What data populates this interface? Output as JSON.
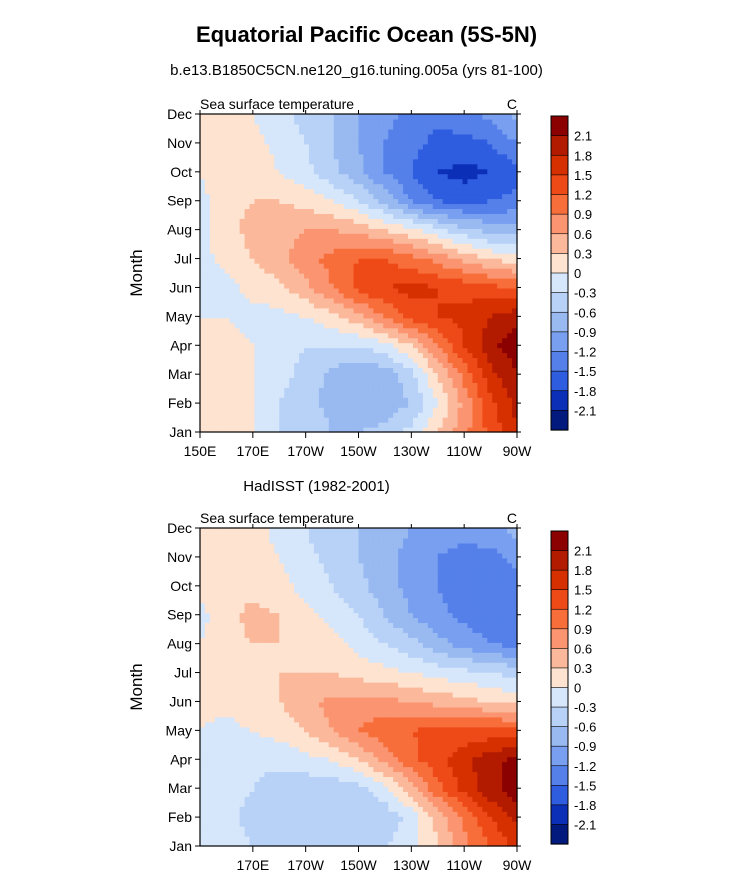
{
  "figure": {
    "title": "Equatorial Pacific Ocean (5S-5N)",
    "units": "C"
  },
  "colorbar": {
    "levels": [
      "2.1",
      "1.8",
      "1.5",
      "1.2",
      "0.9",
      "0.6",
      "0.3",
      "0",
      "-0.3",
      "-0.6",
      "-0.9",
      "-1.2",
      "-1.5",
      "-1.8",
      "-2.1"
    ],
    "colors": [
      "#8b0000",
      "#b31b00",
      "#d63000",
      "#ee4a18",
      "#f86e3a",
      "#fb9470",
      "#fbb89a",
      "#fde3d0",
      "#d6e6fb",
      "#b8d2f7",
      "#99b9f1",
      "#789ff0",
      "#5580ea",
      "#2f5de0",
      "#0c2fb8",
      "#021a7e"
    ]
  },
  "panels": [
    {
      "subtitle": "b.e13.B1850C5CN.ne120_g16.tuning.005a (yrs 81-100)",
      "left_label": "Sea surface temperature",
      "right_label": "C",
      "ylabel": "Month",
      "y_ticks": [
        "Jan",
        "Feb",
        "Mar",
        "Apr",
        "May",
        "Jun",
        "Jul",
        "Aug",
        "Sep",
        "Oct",
        "Nov",
        "Dec"
      ],
      "x_ticks": [
        "150E",
        "170E",
        "170W",
        "150W",
        "130W",
        "110W",
        "90W"
      ],
      "chart_data": {
        "type": "heatmap",
        "title": "b.e13.B1850C5CN.ne120_g16.tuning.005a (yrs 81-100)",
        "xlabel": "",
        "ylabel": "Month",
        "x": [
          150,
          160,
          170,
          180,
          190,
          200,
          210,
          220,
          230,
          240,
          250,
          260,
          270
        ],
        "y": [
          "Jan",
          "Feb",
          "Mar",
          "Apr",
          "May",
          "Jun",
          "Jul",
          "Aug",
          "Sep",
          "Oct",
          "Nov",
          "Dec"
        ],
        "x_range_deg": [
          150,
          270
        ],
        "values": [
          [
            0.2,
            0.1,
            0.0,
            -0.3,
            -0.4,
            -0.6,
            -0.6,
            -0.5,
            -0.2,
            0.3,
            0.8,
            1.3,
            1.8
          ],
          [
            0.2,
            0.1,
            0.0,
            -0.3,
            -0.5,
            -0.7,
            -0.8,
            -0.8,
            -0.6,
            0.0,
            0.7,
            1.4,
            1.9
          ],
          [
            0.2,
            0.1,
            0.0,
            -0.2,
            -0.4,
            -0.7,
            -0.9,
            -0.8,
            -0.4,
            0.3,
            1.0,
            1.7,
            2.1
          ],
          [
            0.1,
            0.1,
            0.0,
            -0.2,
            -0.3,
            -0.3,
            -0.3,
            -0.1,
            0.3,
            0.9,
            1.5,
            2.0,
            2.3
          ],
          [
            0.0,
            0.0,
            -0.1,
            -0.1,
            0.0,
            0.2,
            0.5,
            0.9,
            1.3,
            1.5,
            1.6,
            1.8,
            2.0
          ],
          [
            -0.1,
            -0.1,
            0.1,
            0.2,
            0.5,
            0.9,
            1.3,
            1.5,
            1.6,
            1.5,
            1.4,
            1.3,
            1.2
          ],
          [
            -0.1,
            0.1,
            0.3,
            0.5,
            0.8,
            1.0,
            1.2,
            1.2,
            1.0,
            0.8,
            0.5,
            0.3,
            0.1
          ],
          [
            -0.1,
            0.2,
            0.4,
            0.5,
            0.6,
            0.6,
            0.5,
            0.3,
            0.1,
            -0.2,
            -0.5,
            -0.7,
            -0.8
          ],
          [
            -0.1,
            0.2,
            0.3,
            0.3,
            0.2,
            0.0,
            -0.3,
            -0.7,
            -1.2,
            -1.5,
            -1.6,
            -1.5,
            -1.4
          ],
          [
            0.0,
            0.2,
            0.2,
            0.0,
            -0.2,
            -0.5,
            -0.8,
            -1.2,
            -1.5,
            -1.8,
            -1.9,
            -1.8,
            -1.6
          ],
          [
            0.0,
            0.2,
            0.1,
            -0.1,
            -0.3,
            -0.6,
            -0.9,
            -1.2,
            -1.4,
            -1.6,
            -1.6,
            -1.5,
            -1.2
          ],
          [
            0.0,
            0.2,
            0.0,
            -0.2,
            -0.4,
            -0.6,
            -0.9,
            -1.1,
            -1.3,
            -1.4,
            -1.3,
            -1.1,
            -0.8
          ]
        ]
      }
    },
    {
      "subtitle": "HadISST (1982-2001)",
      "left_label": "Sea surface temperature",
      "right_label": "C",
      "ylabel": "Month",
      "y_ticks": [
        "Jan",
        "Feb",
        "Mar",
        "Apr",
        "May",
        "Jun",
        "Jul",
        "Aug",
        "Sep",
        "Oct",
        "Nov",
        "Dec"
      ],
      "x_ticks": [
        "170E",
        "170W",
        "150W",
        "130W",
        "110W",
        "90W"
      ],
      "chart_data": {
        "type": "heatmap",
        "title": "HadISST (1982-2001)",
        "xlabel": "",
        "ylabel": "Month",
        "x": [
          150,
          160,
          170,
          180,
          190,
          200,
          210,
          220,
          230,
          240,
          250,
          260,
          270
        ],
        "y": [
          "Jan",
          "Feb",
          "Mar",
          "Apr",
          "May",
          "Jun",
          "Jul",
          "Aug",
          "Sep",
          "Oct",
          "Nov",
          "Dec"
        ],
        "x_range_deg": [
          150,
          270
        ],
        "values": [
          [
            0.0,
            -0.2,
            -0.3,
            -0.4,
            -0.4,
            -0.5,
            -0.5,
            -0.3,
            -0.1,
            0.3,
            0.8,
            1.2,
            1.6
          ],
          [
            -0.1,
            -0.2,
            -0.4,
            -0.5,
            -0.6,
            -0.6,
            -0.6,
            -0.5,
            -0.2,
            0.4,
            1.0,
            1.5,
            1.9
          ],
          [
            -0.1,
            -0.2,
            -0.3,
            -0.5,
            -0.5,
            -0.5,
            -0.4,
            -0.1,
            0.5,
            1.1,
            1.6,
            2.0,
            2.3
          ],
          [
            -0.2,
            -0.2,
            -0.2,
            -0.2,
            -0.1,
            0.0,
            0.3,
            0.7,
            1.1,
            1.4,
            1.7,
            2.0,
            2.2
          ],
          [
            0.0,
            -0.1,
            0.0,
            0.1,
            0.3,
            0.6,
            0.9,
            1.1,
            1.2,
            1.3,
            1.3,
            1.3,
            1.3
          ],
          [
            0.1,
            0.1,
            0.2,
            0.3,
            0.5,
            0.7,
            0.7,
            0.7,
            0.6,
            0.5,
            0.4,
            0.3,
            0.2
          ],
          [
            0.1,
            0.2,
            0.2,
            0.3,
            0.3,
            0.3,
            0.2,
            0.1,
            0.0,
            -0.1,
            -0.2,
            -0.3,
            -0.4
          ],
          [
            0.0,
            0.2,
            0.3,
            0.3,
            0.2,
            0.1,
            -0.1,
            -0.3,
            -0.5,
            -0.8,
            -1.0,
            -1.2,
            -1.3
          ],
          [
            -0.1,
            0.2,
            0.4,
            0.3,
            0.1,
            -0.1,
            -0.3,
            -0.6,
            -0.9,
            -1.1,
            -1.3,
            -1.4,
            -1.4
          ],
          [
            0.1,
            0.2,
            0.2,
            0.1,
            -0.1,
            -0.3,
            -0.5,
            -0.8,
            -1.0,
            -1.2,
            -1.4,
            -1.5,
            -1.3
          ],
          [
            0.1,
            0.2,
            0.2,
            0.0,
            -0.2,
            -0.4,
            -0.6,
            -0.8,
            -1.0,
            -1.2,
            -1.3,
            -1.3,
            -1.1
          ],
          [
            0.1,
            0.2,
            0.1,
            -0.1,
            -0.3,
            -0.5,
            -0.6,
            -0.8,
            -0.9,
            -1.1,
            -1.1,
            -1.0,
            -0.8
          ]
        ]
      }
    }
  ]
}
